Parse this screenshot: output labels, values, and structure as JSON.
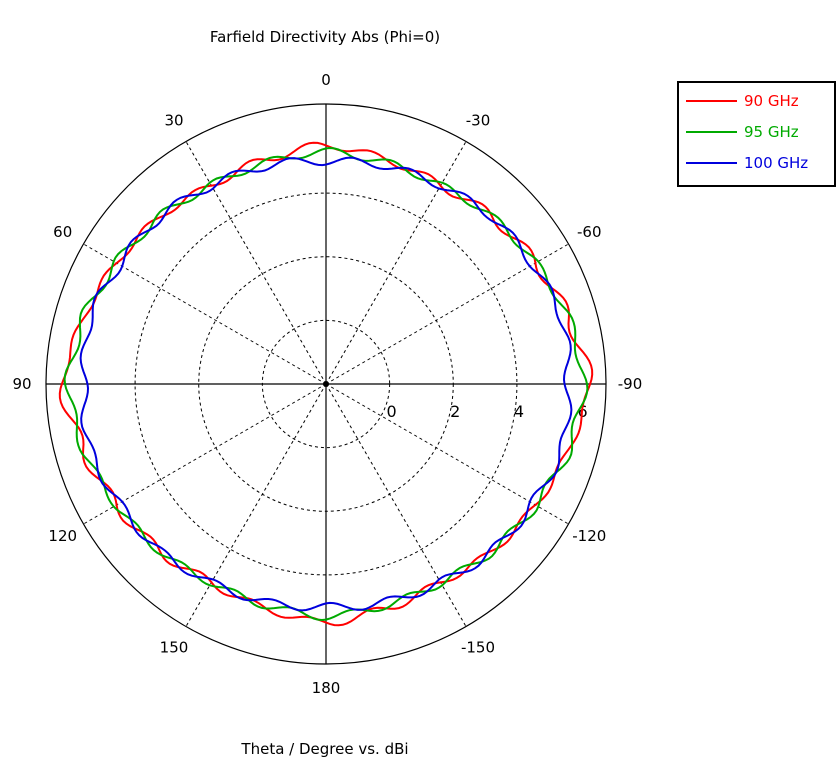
{
  "chart_data": {
    "type": "line",
    "subtype": "polar",
    "title": "Farfield Directivity Abs (Phi=0)",
    "xlabel": "Theta / Degree vs. dBi",
    "angle_ticks": [
      {
        "theta": 0,
        "label": "0"
      },
      {
        "theta": 30,
        "label": "30"
      },
      {
        "theta": -30,
        "label": "-30"
      },
      {
        "theta": 60,
        "label": "60"
      },
      {
        "theta": -60,
        "label": "-60"
      },
      {
        "theta": 90,
        "label": "90"
      },
      {
        "theta": -90,
        "label": "-90"
      },
      {
        "theta": 120,
        "label": "120"
      },
      {
        "theta": -120,
        "label": "-120"
      },
      {
        "theta": 150,
        "label": "150"
      },
      {
        "theta": -150,
        "label": "-150"
      },
      {
        "theta": 180,
        "label": "180"
      }
    ],
    "radial_ticks": [
      "0",
      "2",
      "4",
      "6"
    ],
    "radial_range_dBi": [
      -2,
      6.8
    ],
    "grid": true,
    "legend_position": "top-right",
    "series": [
      {
        "name": "90 GHz",
        "color": "#ff0000",
        "theta": [
          0,
          15,
          30,
          45,
          60,
          75,
          90,
          105,
          120,
          135,
          150,
          165,
          180,
          -165,
          -150,
          -135,
          -120,
          -105,
          -90,
          -75,
          -60,
          -45,
          -30,
          -15
        ],
        "values": [
          5.5,
          5.3,
          5.2,
          5.4,
          5.6,
          5.9,
          6.3,
          5.9,
          5.6,
          5.4,
          5.2,
          5.3,
          5.5,
          5.3,
          5.2,
          5.4,
          5.6,
          5.9,
          6.3,
          5.9,
          5.6,
          5.4,
          5.2,
          5.3
        ]
      },
      {
        "name": "95 GHz",
        "color": "#00aa00",
        "theta": [
          0,
          15,
          30,
          45,
          60,
          75,
          90,
          105,
          120,
          135,
          150,
          165,
          180,
          -165,
          -150,
          -135,
          -120,
          -105,
          -90,
          -75,
          -60,
          -45,
          -30,
          -15
        ],
        "values": [
          5.3,
          5.2,
          5.2,
          5.4,
          5.6,
          5.9,
          6.1,
          5.9,
          5.6,
          5.4,
          5.2,
          5.2,
          5.3,
          5.2,
          5.2,
          5.4,
          5.6,
          5.9,
          6.1,
          5.9,
          5.6,
          5.4,
          5.2,
          5.2
        ]
      },
      {
        "name": "100 GHz",
        "color": "#0000dd",
        "theta": [
          0,
          15,
          30,
          45,
          60,
          75,
          90,
          105,
          120,
          135,
          150,
          165,
          180,
          -165,
          -150,
          -135,
          -120,
          -105,
          -90,
          -75,
          -60,
          -45,
          -30,
          -15
        ],
        "values": [
          5.0,
          5.1,
          5.2,
          5.4,
          5.5,
          5.7,
          5.6,
          5.7,
          5.5,
          5.4,
          5.2,
          5.1,
          5.0,
          5.1,
          5.2,
          5.4,
          5.5,
          5.7,
          5.6,
          5.7,
          5.5,
          5.4,
          5.2,
          5.1
        ]
      }
    ]
  }
}
